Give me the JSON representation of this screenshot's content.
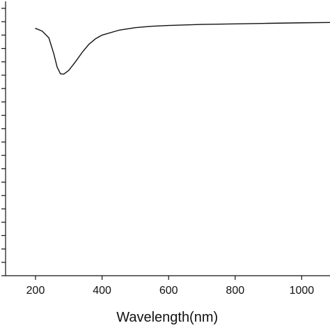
{
  "chart_data": {
    "type": "line",
    "title": "",
    "xlabel": "Wavelength(nm)",
    "ylabel": "",
    "xlim": [
      110,
      1085
    ],
    "ylim": [
      0,
      100
    ],
    "grid": false,
    "legend": "none",
    "x_ticks": [
      200,
      400,
      600,
      800,
      1000
    ],
    "x_tick_labels": [
      "200",
      "400",
      "600",
      "800",
      "1000"
    ],
    "y_ticks": [
      0,
      5,
      10,
      15,
      20,
      25,
      30,
      35,
      40,
      45,
      50,
      55,
      60,
      65,
      70,
      75,
      80,
      85,
      90,
      95,
      100
    ],
    "y_tick_labels": [],
    "series": [
      {
        "color": "#111111",
        "x": [
          200,
          220,
          240,
          255,
          265,
          275,
          285,
          300,
          320,
          340,
          360,
          380,
          400,
          450,
          500,
          550,
          600,
          700,
          800,
          900,
          1000,
          1085
        ],
        "y": [
          92.5,
          91.5,
          89.0,
          83.0,
          78.0,
          75.5,
          75.4,
          76.8,
          80.0,
          83.5,
          86.5,
          88.6,
          90.0,
          91.8,
          92.8,
          93.3,
          93.6,
          94.0,
          94.2,
          94.4,
          94.6,
          94.7
        ]
      }
    ]
  }
}
